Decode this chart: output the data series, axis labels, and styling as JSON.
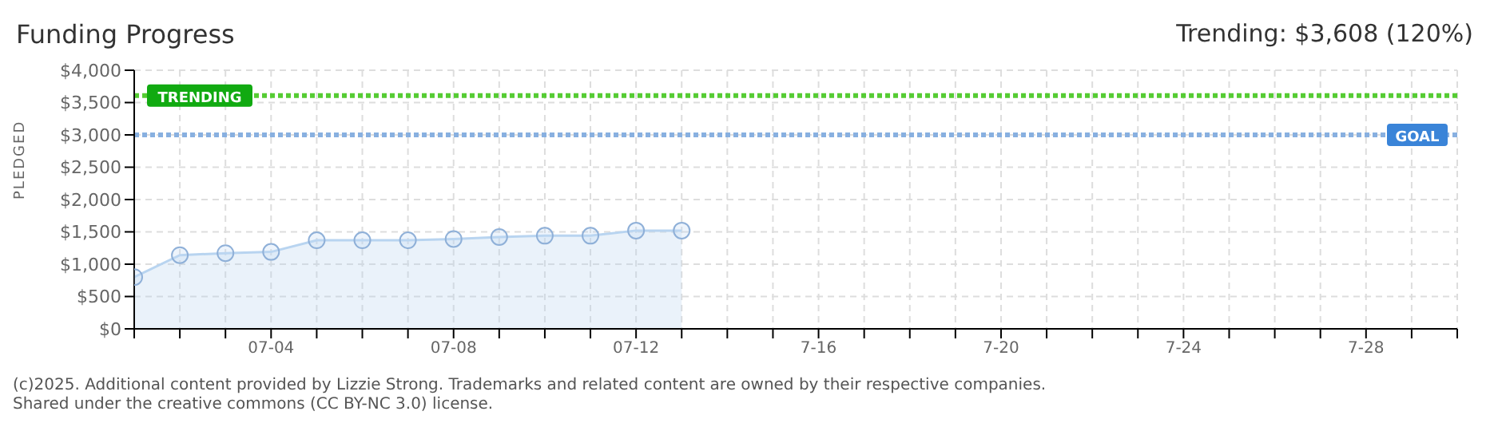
{
  "chart_data": {
    "type": "area",
    "title": "Funding Progress",
    "subtitle": "Trending: $3,608 (120%)",
    "ylabel": "PLEDGED",
    "x": [
      "--07-01",
      "--07-02",
      "--07-03",
      "--07-04",
      "--07-05",
      "--07-06",
      "--07-07",
      "--07-08",
      "--07-09",
      "--07-10",
      "--07-11",
      "--07-12",
      "--07-13"
    ],
    "series": [
      {
        "color": "#b8d4f0",
        "values": [
          800,
          1140,
          1170,
          1190,
          1370,
          1370,
          1370,
          1390,
          1420,
          1440,
          1440,
          1520,
          1520
        ]
      }
    ],
    "xlim": [
      "--07-01",
      "--07-30"
    ],
    "xticks": [
      {
        "value": "--07-01",
        "label": null
      },
      {
        "value": "--07-02",
        "label": null
      },
      {
        "value": "--07-03",
        "label": null
      },
      {
        "value": "--07-04",
        "label": "07-04"
      },
      {
        "value": "--07-05",
        "label": null
      },
      {
        "value": "--07-06",
        "label": null
      },
      {
        "value": "--07-07",
        "label": null
      },
      {
        "value": "--07-08",
        "label": "07-08"
      },
      {
        "value": "--07-09",
        "label": null
      },
      {
        "value": "--07-10",
        "label": null
      },
      {
        "value": "--07-11",
        "label": null
      },
      {
        "value": "--07-12",
        "label": "07-12"
      },
      {
        "value": "--07-13",
        "label": null
      },
      {
        "value": "--07-14",
        "label": null
      },
      {
        "value": "--07-15",
        "label": null
      },
      {
        "value": "--07-16",
        "label": "7-16"
      },
      {
        "value": "--07-17",
        "label": null
      },
      {
        "value": "--07-18",
        "label": null
      },
      {
        "value": "--07-19",
        "label": null
      },
      {
        "value": "--07-20",
        "label": "7-20"
      },
      {
        "value": "--07-21",
        "label": null
      },
      {
        "value": "--07-22",
        "label": null
      },
      {
        "value": "--07-23",
        "label": null
      },
      {
        "value": "--07-24",
        "label": "7-24"
      },
      {
        "value": "--07-25",
        "label": null
      },
      {
        "value": "--07-26",
        "label": null
      },
      {
        "value": "--07-27",
        "label": null
      },
      {
        "value": "--07-28",
        "label": "7-28"
      },
      {
        "value": "--07-29",
        "label": null
      },
      {
        "value": "--07-30",
        "label": null
      }
    ],
    "ylim": [
      0,
      4000
    ],
    "yticks": [
      {
        "value": 0,
        "label": "$0"
      },
      {
        "value": 500,
        "label": "$500"
      },
      {
        "value": 1000,
        "label": "$1,000"
      },
      {
        "value": 1500,
        "label": "$1,500"
      },
      {
        "value": 2000,
        "label": "$2,000"
      },
      {
        "value": 2500,
        "label": "$2,500"
      },
      {
        "value": 3000,
        "label": "$3,000"
      },
      {
        "value": 3500,
        "label": "$3,500"
      },
      {
        "value": 4000,
        "label": "$4,000"
      }
    ],
    "ref_lines": [
      {
        "axis": "y",
        "value": 3608,
        "label": "TRENDING",
        "color": "#55cc33",
        "line_style": "dotted"
      },
      {
        "axis": "y",
        "value": 3000,
        "label": "GOAL",
        "color": "#88b0e0",
        "line_style": "dotted"
      }
    ],
    "grid": true,
    "marker": "circle",
    "annotations": [
      "(c)2025. Additional content provided by Lizzie Strong. Trademarks and related content are owned by their respective companies.",
      "Shared under the creative commons (CC BY-NC 3.0) license."
    ]
  }
}
